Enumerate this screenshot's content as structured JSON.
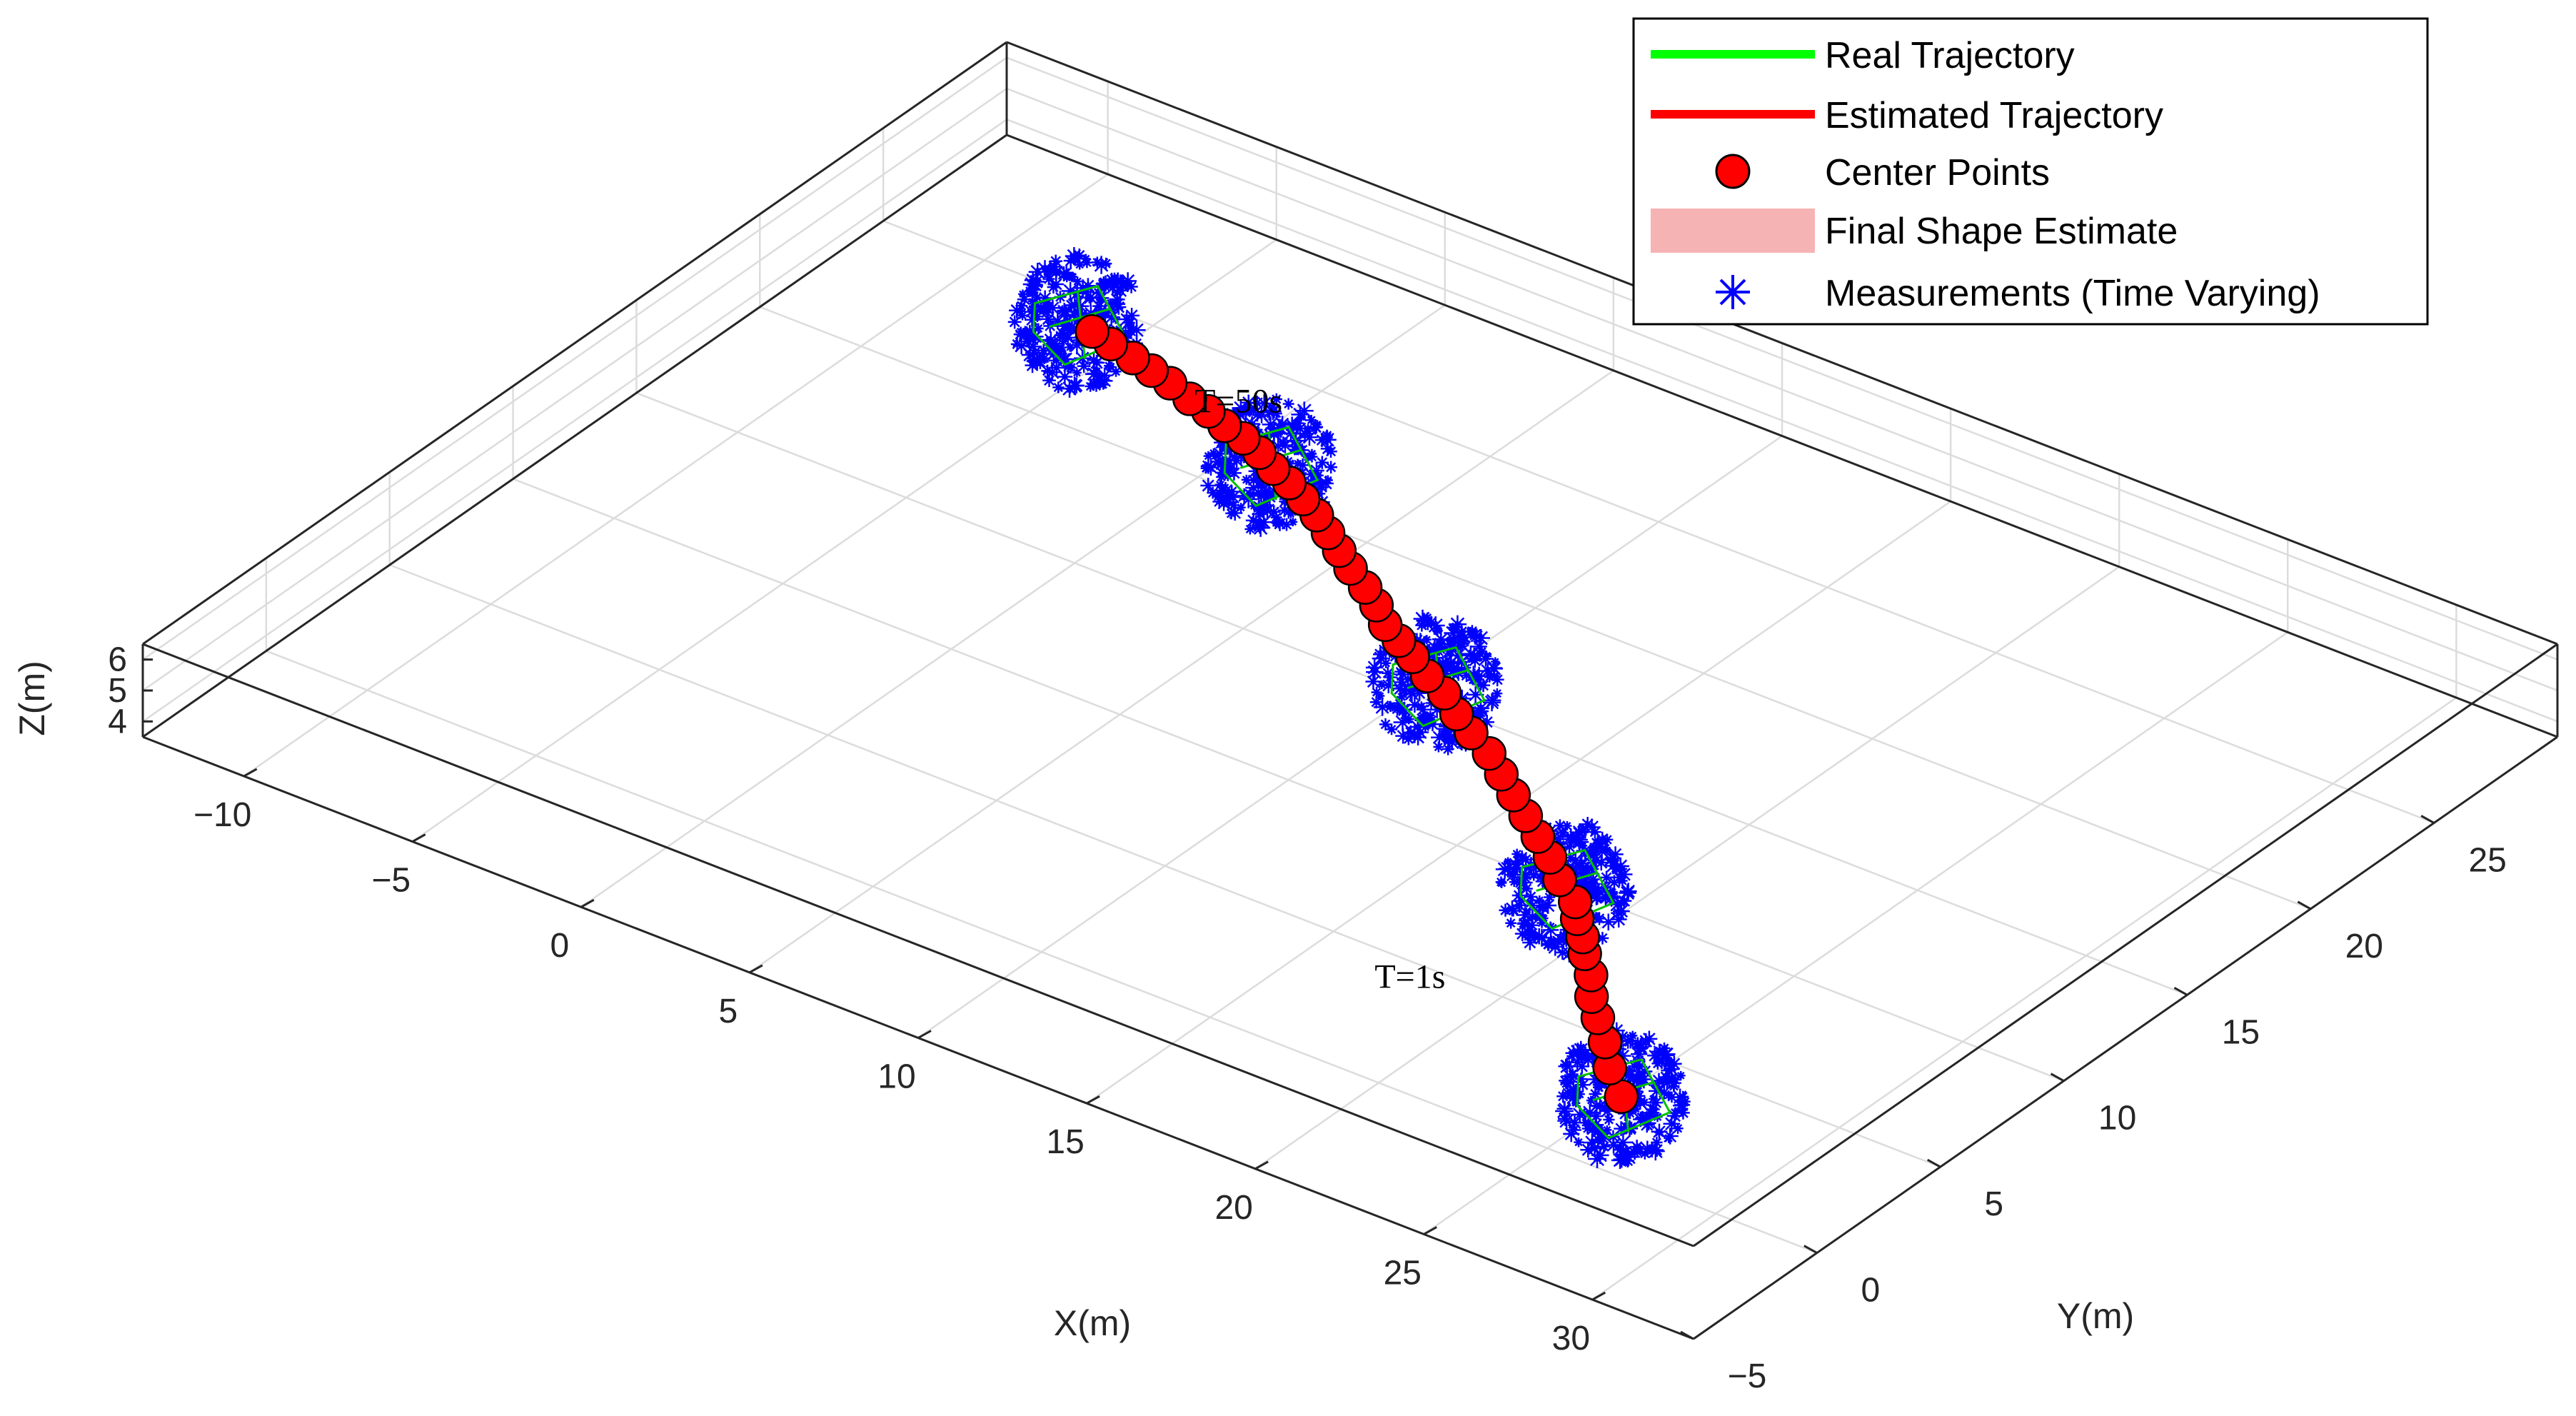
{
  "chart_data": {
    "type": "line3d",
    "xlabel": "X(m)",
    "ylabel": "Y(m)",
    "zlabel": "Z(m)",
    "xlim": [
      -13,
      33
    ],
    "ylim": [
      -5,
      30
    ],
    "zlim": [
      3.5,
      6.5
    ],
    "x_ticks": [
      "−10",
      "−5",
      "0",
      "5",
      "10",
      "15",
      "20",
      "25",
      "30"
    ],
    "y_ticks": [
      "−5",
      "0",
      "5",
      "10",
      "15",
      "20",
      "25"
    ],
    "z_ticks": [
      "4",
      "5",
      "6"
    ],
    "grid": true,
    "legend_position": "top-right",
    "legend": [
      {
        "label": "Real Trajectory",
        "style": "line",
        "color": "#00ff00"
      },
      {
        "label": "Estimated Trajectory",
        "style": "line",
        "color": "#ff0000"
      },
      {
        "label": "Center Points",
        "style": "marker-circle",
        "color": "#ff0000"
      },
      {
        "label": "Final Shape Estimate",
        "style": "patch",
        "color": "#f6b3b3"
      },
      {
        "label": "Measurements (Time Varying)",
        "style": "marker-star",
        "color": "#0000ff"
      }
    ],
    "annotations": [
      {
        "text": "T=50s",
        "x": -1,
        "y": 23
      },
      {
        "text": "T=1s",
        "x": 18,
        "y": 4
      }
    ],
    "series": [
      {
        "name": "Center Points",
        "points": [
          [
            25.0,
            3.0
          ],
          [
            24.0,
            3.9
          ],
          [
            23.2,
            4.8
          ],
          [
            22.4,
            5.6
          ],
          [
            21.7,
            6.3
          ],
          [
            21.1,
            7.1
          ],
          [
            20.4,
            7.8
          ],
          [
            19.9,
            8.4
          ],
          [
            19.3,
            9.0
          ],
          [
            18.8,
            9.6
          ],
          [
            17.9,
            10.2
          ],
          [
            17.1,
            10.9
          ],
          [
            16.3,
            11.5
          ],
          [
            15.5,
            12.1
          ],
          [
            14.7,
            12.7
          ],
          [
            13.9,
            13.3
          ],
          [
            13.1,
            13.9
          ],
          [
            12.2,
            14.4
          ],
          [
            11.4,
            14.9
          ],
          [
            10.6,
            15.5
          ],
          [
            9.8,
            15.9
          ],
          [
            9.0,
            16.4
          ],
          [
            8.3,
            16.8
          ],
          [
            7.6,
            17.2
          ],
          [
            6.9,
            17.8
          ],
          [
            6.2,
            18.3
          ],
          [
            5.4,
            18.8
          ],
          [
            4.7,
            19.3
          ],
          [
            4.0,
            19.8
          ],
          [
            3.3,
            20.3
          ],
          [
            2.6,
            20.7
          ],
          [
            1.9,
            21.1
          ],
          [
            1.2,
            21.4
          ],
          [
            0.5,
            21.8
          ],
          [
            -0.2,
            22.1
          ],
          [
            -0.9,
            22.3
          ],
          [
            -1.6,
            22.6
          ],
          [
            -2.3,
            22.8
          ],
          [
            -3.1,
            23.1
          ],
          [
            -3.8,
            23.3
          ],
          [
            -4.5,
            23.5
          ],
          [
            -5.3,
            23.7
          ],
          [
            -6.0,
            23.9
          ]
        ]
      }
    ],
    "clusters": [
      {
        "x": 25.0,
        "y": 3.0
      },
      {
        "x": 18.2,
        "y": 10.0
      },
      {
        "x": 10.2,
        "y": 15.7
      },
      {
        "x": 1.0,
        "y": 21.5
      },
      {
        "x": -6.5,
        "y": 24.0
      }
    ]
  }
}
